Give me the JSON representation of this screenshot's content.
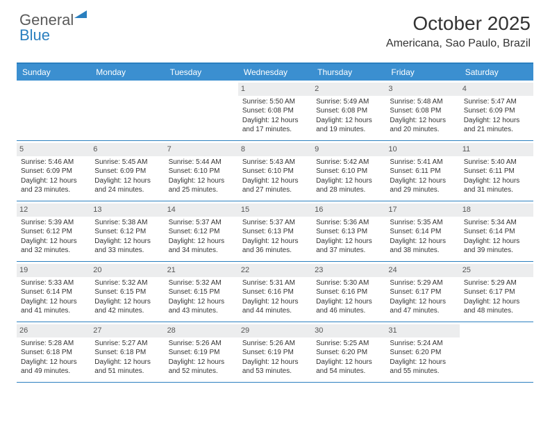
{
  "logo": {
    "text1": "General",
    "text2": "Blue",
    "triangle_color": "#2a7fbf"
  },
  "title": "October 2025",
  "location": "Americana, Sao Paulo, Brazil",
  "day_names": [
    "Sunday",
    "Monday",
    "Tuesday",
    "Wednesday",
    "Thursday",
    "Friday",
    "Saturday"
  ],
  "colors": {
    "header_bg": "#3b8fd0",
    "border": "#2a7fbf",
    "daynum_bg": "#ecedee",
    "text": "#333333",
    "bg": "#ffffff"
  },
  "weeks": [
    [
      {
        "empty": true
      },
      {
        "empty": true
      },
      {
        "empty": true
      },
      {
        "day": "1",
        "sunrise": "Sunrise: 5:50 AM",
        "sunset": "Sunset: 6:08 PM",
        "daylight1": "Daylight: 12 hours",
        "daylight2": "and 17 minutes."
      },
      {
        "day": "2",
        "sunrise": "Sunrise: 5:49 AM",
        "sunset": "Sunset: 6:08 PM",
        "daylight1": "Daylight: 12 hours",
        "daylight2": "and 19 minutes."
      },
      {
        "day": "3",
        "sunrise": "Sunrise: 5:48 AM",
        "sunset": "Sunset: 6:08 PM",
        "daylight1": "Daylight: 12 hours",
        "daylight2": "and 20 minutes."
      },
      {
        "day": "4",
        "sunrise": "Sunrise: 5:47 AM",
        "sunset": "Sunset: 6:09 PM",
        "daylight1": "Daylight: 12 hours",
        "daylight2": "and 21 minutes."
      }
    ],
    [
      {
        "day": "5",
        "sunrise": "Sunrise: 5:46 AM",
        "sunset": "Sunset: 6:09 PM",
        "daylight1": "Daylight: 12 hours",
        "daylight2": "and 23 minutes."
      },
      {
        "day": "6",
        "sunrise": "Sunrise: 5:45 AM",
        "sunset": "Sunset: 6:09 PM",
        "daylight1": "Daylight: 12 hours",
        "daylight2": "and 24 minutes."
      },
      {
        "day": "7",
        "sunrise": "Sunrise: 5:44 AM",
        "sunset": "Sunset: 6:10 PM",
        "daylight1": "Daylight: 12 hours",
        "daylight2": "and 25 minutes."
      },
      {
        "day": "8",
        "sunrise": "Sunrise: 5:43 AM",
        "sunset": "Sunset: 6:10 PM",
        "daylight1": "Daylight: 12 hours",
        "daylight2": "and 27 minutes."
      },
      {
        "day": "9",
        "sunrise": "Sunrise: 5:42 AM",
        "sunset": "Sunset: 6:10 PM",
        "daylight1": "Daylight: 12 hours",
        "daylight2": "and 28 minutes."
      },
      {
        "day": "10",
        "sunrise": "Sunrise: 5:41 AM",
        "sunset": "Sunset: 6:11 PM",
        "daylight1": "Daylight: 12 hours",
        "daylight2": "and 29 minutes."
      },
      {
        "day": "11",
        "sunrise": "Sunrise: 5:40 AM",
        "sunset": "Sunset: 6:11 PM",
        "daylight1": "Daylight: 12 hours",
        "daylight2": "and 31 minutes."
      }
    ],
    [
      {
        "day": "12",
        "sunrise": "Sunrise: 5:39 AM",
        "sunset": "Sunset: 6:12 PM",
        "daylight1": "Daylight: 12 hours",
        "daylight2": "and 32 minutes."
      },
      {
        "day": "13",
        "sunrise": "Sunrise: 5:38 AM",
        "sunset": "Sunset: 6:12 PM",
        "daylight1": "Daylight: 12 hours",
        "daylight2": "and 33 minutes."
      },
      {
        "day": "14",
        "sunrise": "Sunrise: 5:37 AM",
        "sunset": "Sunset: 6:12 PM",
        "daylight1": "Daylight: 12 hours",
        "daylight2": "and 34 minutes."
      },
      {
        "day": "15",
        "sunrise": "Sunrise: 5:37 AM",
        "sunset": "Sunset: 6:13 PM",
        "daylight1": "Daylight: 12 hours",
        "daylight2": "and 36 minutes."
      },
      {
        "day": "16",
        "sunrise": "Sunrise: 5:36 AM",
        "sunset": "Sunset: 6:13 PM",
        "daylight1": "Daylight: 12 hours",
        "daylight2": "and 37 minutes."
      },
      {
        "day": "17",
        "sunrise": "Sunrise: 5:35 AM",
        "sunset": "Sunset: 6:14 PM",
        "daylight1": "Daylight: 12 hours",
        "daylight2": "and 38 minutes."
      },
      {
        "day": "18",
        "sunrise": "Sunrise: 5:34 AM",
        "sunset": "Sunset: 6:14 PM",
        "daylight1": "Daylight: 12 hours",
        "daylight2": "and 39 minutes."
      }
    ],
    [
      {
        "day": "19",
        "sunrise": "Sunrise: 5:33 AM",
        "sunset": "Sunset: 6:14 PM",
        "daylight1": "Daylight: 12 hours",
        "daylight2": "and 41 minutes."
      },
      {
        "day": "20",
        "sunrise": "Sunrise: 5:32 AM",
        "sunset": "Sunset: 6:15 PM",
        "daylight1": "Daylight: 12 hours",
        "daylight2": "and 42 minutes."
      },
      {
        "day": "21",
        "sunrise": "Sunrise: 5:32 AM",
        "sunset": "Sunset: 6:15 PM",
        "daylight1": "Daylight: 12 hours",
        "daylight2": "and 43 minutes."
      },
      {
        "day": "22",
        "sunrise": "Sunrise: 5:31 AM",
        "sunset": "Sunset: 6:16 PM",
        "daylight1": "Daylight: 12 hours",
        "daylight2": "and 44 minutes."
      },
      {
        "day": "23",
        "sunrise": "Sunrise: 5:30 AM",
        "sunset": "Sunset: 6:16 PM",
        "daylight1": "Daylight: 12 hours",
        "daylight2": "and 46 minutes."
      },
      {
        "day": "24",
        "sunrise": "Sunrise: 5:29 AM",
        "sunset": "Sunset: 6:17 PM",
        "daylight1": "Daylight: 12 hours",
        "daylight2": "and 47 minutes."
      },
      {
        "day": "25",
        "sunrise": "Sunrise: 5:29 AM",
        "sunset": "Sunset: 6:17 PM",
        "daylight1": "Daylight: 12 hours",
        "daylight2": "and 48 minutes."
      }
    ],
    [
      {
        "day": "26",
        "sunrise": "Sunrise: 5:28 AM",
        "sunset": "Sunset: 6:18 PM",
        "daylight1": "Daylight: 12 hours",
        "daylight2": "and 49 minutes."
      },
      {
        "day": "27",
        "sunrise": "Sunrise: 5:27 AM",
        "sunset": "Sunset: 6:18 PM",
        "daylight1": "Daylight: 12 hours",
        "daylight2": "and 51 minutes."
      },
      {
        "day": "28",
        "sunrise": "Sunrise: 5:26 AM",
        "sunset": "Sunset: 6:19 PM",
        "daylight1": "Daylight: 12 hours",
        "daylight2": "and 52 minutes."
      },
      {
        "day": "29",
        "sunrise": "Sunrise: 5:26 AM",
        "sunset": "Sunset: 6:19 PM",
        "daylight1": "Daylight: 12 hours",
        "daylight2": "and 53 minutes."
      },
      {
        "day": "30",
        "sunrise": "Sunrise: 5:25 AM",
        "sunset": "Sunset: 6:20 PM",
        "daylight1": "Daylight: 12 hours",
        "daylight2": "and 54 minutes."
      },
      {
        "day": "31",
        "sunrise": "Sunrise: 5:24 AM",
        "sunset": "Sunset: 6:20 PM",
        "daylight1": "Daylight: 12 hours",
        "daylight2": "and 55 minutes."
      },
      {
        "empty": true
      }
    ]
  ]
}
